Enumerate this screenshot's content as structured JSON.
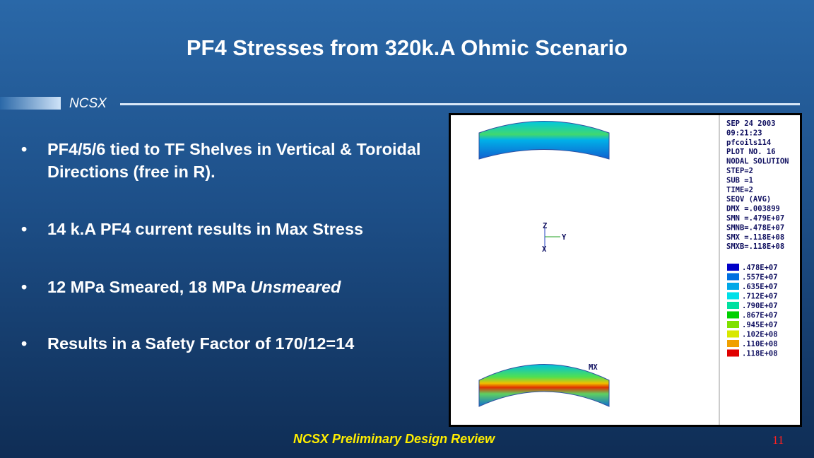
{
  "slide": {
    "title": "PF4 Stresses from 320k.A Ohmic Scenario",
    "section": "NCSX",
    "bullets": [
      {
        "marker": "•",
        "parts": [
          "PF4/5/6 tied to TF Shelves in Vertical & Toroidal Directions (free in R)."
        ]
      },
      {
        "marker": "•",
        "parts": [
          "14 k.A PF4 current results in Max Stress"
        ]
      },
      {
        "marker": "•",
        "parts": [
          "12 MPa Smeared, 18 MPa ",
          "Unsmeared"
        ]
      },
      {
        "marker": "•",
        "parts": [
          "Results in a Safety Factor of 170/12=14"
        ]
      }
    ],
    "plot": {
      "info": [
        "SEP 24 2003",
        "09:21:23",
        "pfcoils114",
        "PLOT NO. 16",
        "NODAL SOLUTION",
        "STEP=2",
        "SUB =1",
        "TIME=2",
        "SEQV    (AVG)",
        "DMX =.003899",
        "SMN =.479E+07",
        "SMNB=.478E+07",
        "SMX =.118E+08",
        "SMXB=.118E+08"
      ],
      "legend": [
        ".478E+07",
        ".557E+07",
        ".635E+07",
        ".712E+07",
        ".790E+07",
        ".867E+07",
        ".945E+07",
        ".102E+08",
        ".110E+08",
        ".118E+08"
      ],
      "axes": [
        "Z",
        "Y",
        "X"
      ],
      "max_label": "MX"
    },
    "footer": "NCSX Preliminary  Design Review",
    "page_number": "11"
  }
}
